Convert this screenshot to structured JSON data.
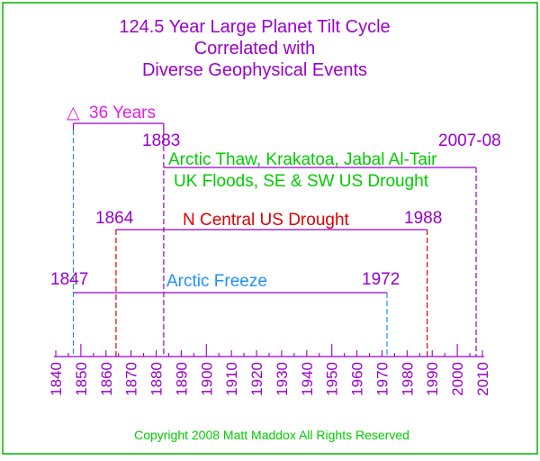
{
  "title_lines": [
    "124.5 Year Large Planet Tilt Cycle",
    "Correlated with",
    "Diverse Geophysical Events"
  ],
  "delta": {
    "symbol": "△",
    "label": "36 Years",
    "from_year": 1847,
    "to_year": 1883
  },
  "events": [
    {
      "start_label": "1883",
      "end_label": "2007-08",
      "start_year": 1883,
      "end_year": 2007.5,
      "lines": [
        "Arctic Thaw, Krakatoa, Jabal Al-Tair",
        "UK Floods, SE & SW US Drought"
      ],
      "color": "#00e000",
      "bracket_color": "#9900cc"
    },
    {
      "start_label": "1864",
      "end_label": "1988",
      "start_year": 1864,
      "end_year": 1988,
      "lines": [
        "N Central US Drought"
      ],
      "color": "#dd0000",
      "bracket_color": "#9900cc"
    },
    {
      "start_label": "1847",
      "end_label": "1972",
      "start_year": 1847,
      "end_year": 1972,
      "lines": [
        "Arctic Freeze"
      ],
      "color": "#1e90ff",
      "bracket_color": "#9900cc"
    }
  ],
  "axis": {
    "min": 1840,
    "max": 2010,
    "tick_labels": [
      "1840",
      "1850",
      "1860",
      "1870",
      "1880",
      "1890",
      "1900",
      "1910",
      "1920",
      "1930",
      "1940",
      "1950",
      "1960",
      "1970",
      "1980",
      "1990",
      "2000",
      "2010"
    ]
  },
  "copyright": "Copyright 2008   Matt Maddox   All Rights Reserved",
  "colors": {
    "frame": "#00bb00",
    "purple": "#9900cc",
    "magenta": "#e020e0",
    "green_text": "#00cc00"
  }
}
